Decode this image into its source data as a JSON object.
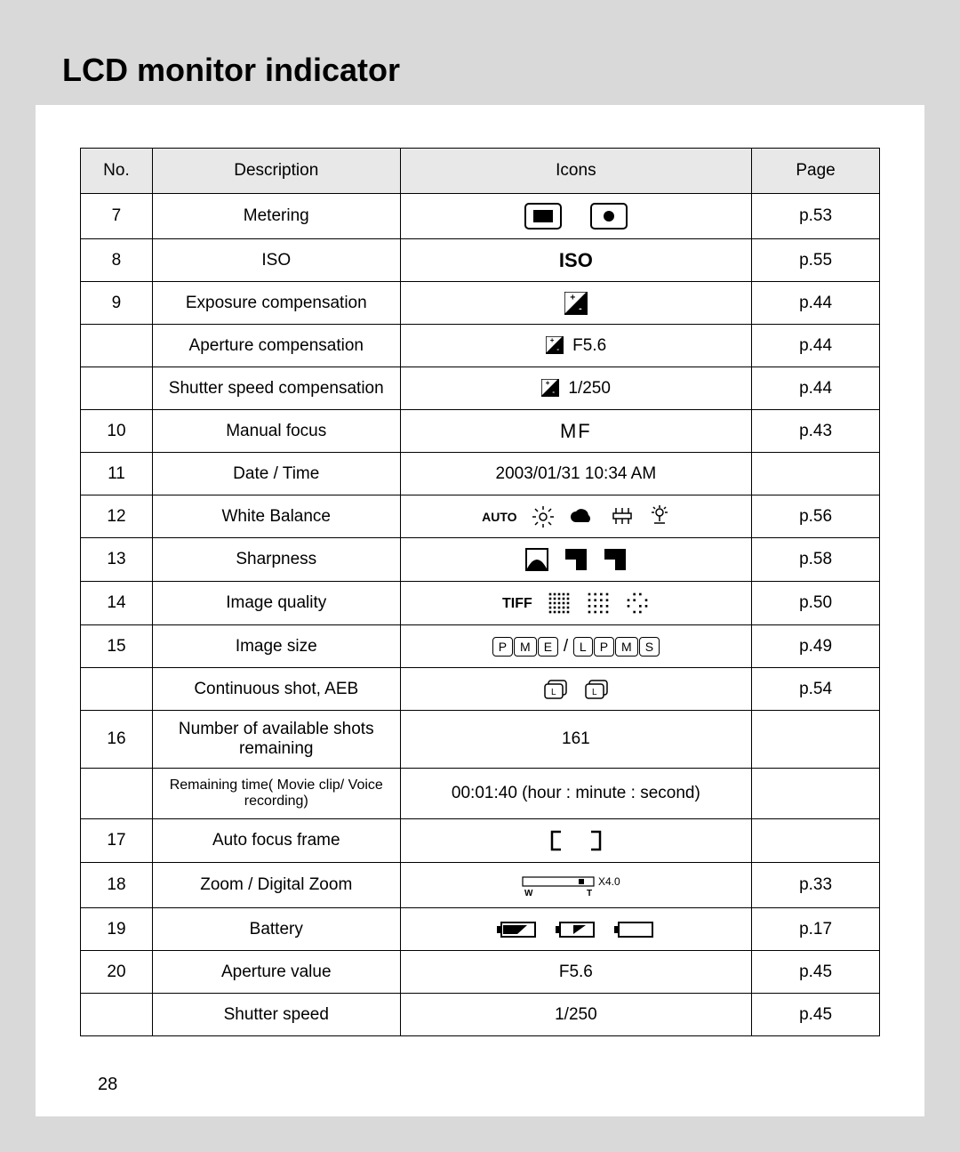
{
  "title": "LCD monitor indicator",
  "pageNumber": "28",
  "columns": {
    "no": "No.",
    "desc": "Description",
    "icons": "Icons",
    "page": "Page"
  },
  "rows": [
    {
      "no": "7",
      "desc": "Metering",
      "icon": "metering",
      "page": "p.53"
    },
    {
      "no": "8",
      "desc": "ISO",
      "icon": "iso",
      "page": "p.55"
    },
    {
      "no": "9",
      "desc": "Exposure compensation",
      "icon": "expcomp",
      "page": "p.44"
    },
    {
      "no": "",
      "desc": "Aperture compensation",
      "icon": "apercomp",
      "page": "p.44"
    },
    {
      "no": "",
      "desc": "Shutter speed compensation",
      "icon": "shutcomp",
      "page": "p.44"
    },
    {
      "no": "10",
      "desc": "Manual focus",
      "icon": "mf",
      "page": "p.43"
    },
    {
      "no": "11",
      "desc": "Date / Time",
      "icon": "datetime",
      "page": ""
    },
    {
      "no": "12",
      "desc": "White Balance",
      "icon": "wb",
      "page": "p.56"
    },
    {
      "no": "13",
      "desc": "Sharpness",
      "icon": "sharp",
      "page": "p.58"
    },
    {
      "no": "14",
      "desc": "Image quality",
      "icon": "quality",
      "page": "p.50"
    },
    {
      "no": "15",
      "desc": "Image size",
      "icon": "imgsize",
      "page": "p.49"
    },
    {
      "no": "",
      "desc": "Continuous shot, AEB",
      "icon": "continuous",
      "page": "p.54"
    },
    {
      "no": "16",
      "desc": "Number of available shots remaining",
      "icon": "shots",
      "page": ""
    },
    {
      "no": "",
      "desc": "Remaining time( Movie clip/ Voice recording)",
      "icon": "remtime",
      "page": ""
    },
    {
      "no": "17",
      "desc": "Auto focus frame",
      "icon": "afframe",
      "page": ""
    },
    {
      "no": "18",
      "desc": "Zoom / Digital Zoom",
      "icon": "zoom",
      "page": "p.33"
    },
    {
      "no": "19",
      "desc": "Battery",
      "icon": "battery",
      "page": "p.17"
    },
    {
      "no": "20",
      "desc": "Aperture value",
      "icon": "aperval",
      "page": "p.45"
    },
    {
      "no": "",
      "desc": "Shutter speed",
      "icon": "shutspd",
      "page": "p.45"
    }
  ],
  "iconText": {
    "iso": "ISO",
    "mf": "MF",
    "datetime": "2003/01/31 10:34 AM",
    "apercompLabel": "F5.6",
    "shutcompLabel": "1/250",
    "shots": "161",
    "remtime": "00:01:40 (hour : minute : second)",
    "aperval": "F5.6",
    "shutspd": "1/250",
    "tiff": "TIFF",
    "wbAuto": "AUTO",
    "zoomLabel": "X4.0",
    "zoomW": "W",
    "zoomT": "T",
    "sizeLetters1": [
      "P",
      "M",
      "E"
    ],
    "sizeLetters2": [
      "L",
      "P",
      "M",
      "S"
    ],
    "contLetters": [
      "L",
      "L"
    ]
  },
  "colors": {
    "pageBg": "#d9d9d9",
    "sheet": "#ffffff",
    "headerBg": "#e8e8e8",
    "line": "#000000"
  }
}
